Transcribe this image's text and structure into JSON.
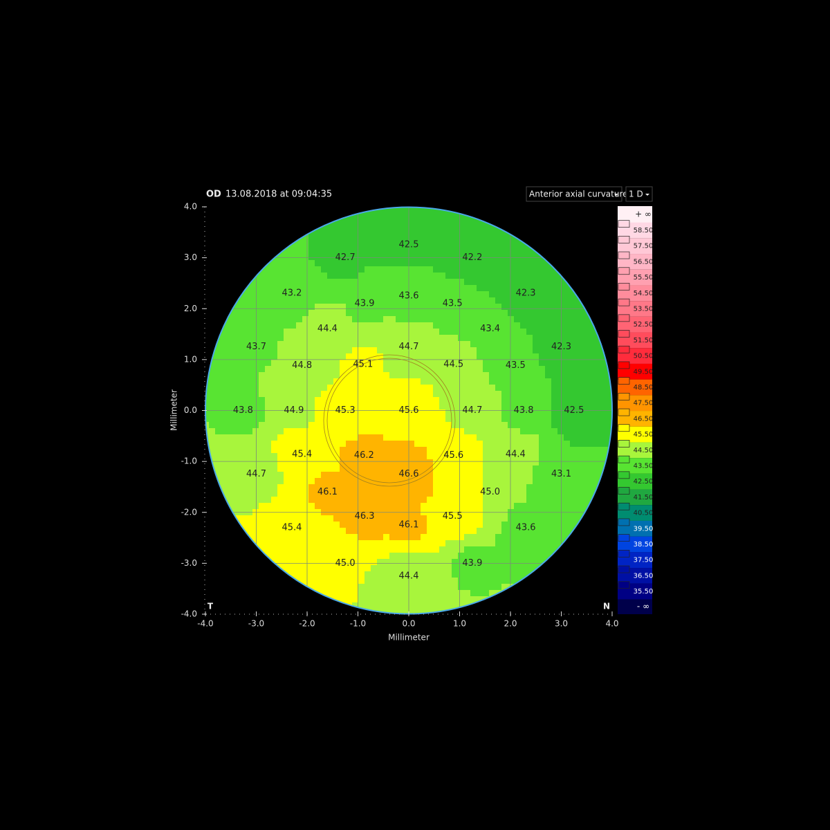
{
  "chart_data": {
    "type": "topography",
    "eye": "OD",
    "timestamp": "13.08.2018 at 09:04:35",
    "map_type": "Anterior axial curvature",
    "step": "1 D",
    "x_label": "Millimeter",
    "y_label": "Millimeter",
    "left_marker": "T",
    "right_marker": "N",
    "xlim": [
      -4,
      4
    ],
    "ylim": [
      -4,
      4
    ],
    "xticks": [
      {
        "value": -4,
        "label": "-4.0"
      },
      {
        "value": -3,
        "label": "-3.0"
      },
      {
        "value": -2,
        "label": "-2.0"
      },
      {
        "value": -1,
        "label": "-1.0"
      },
      {
        "value": 0,
        "label": "0.0"
      },
      {
        "value": 1,
        "label": "1.0"
      },
      {
        "value": 2,
        "label": "2.0"
      },
      {
        "value": 3,
        "label": "3.0"
      },
      {
        "value": 4,
        "label": "4.0"
      }
    ],
    "yticks": [
      {
        "value": -4,
        "label": "-4.0"
      },
      {
        "value": -3,
        "label": "-3.0"
      },
      {
        "value": -2,
        "label": "-2.0"
      },
      {
        "value": -1,
        "label": "-1.0"
      },
      {
        "value": 0,
        "label": "0.0"
      },
      {
        "value": 1,
        "label": "1.0"
      },
      {
        "value": 2,
        "label": "2.0"
      },
      {
        "value": 3,
        "label": "3.0"
      },
      {
        "value": 4,
        "label": "4.0"
      }
    ],
    "grid": true,
    "x": [
      0,
      -1.25,
      1.25,
      -2.3,
      -0.87,
      0,
      0.86,
      2.3,
      -1.6,
      1.6,
      -3.0,
      0,
      3.0,
      -2.1,
      -0.9,
      0.88,
      2.1,
      -3.26,
      -2.26,
      -1.25,
      0,
      1.25,
      2.26,
      3.25,
      -2.1,
      -0.88,
      0.88,
      2.1,
      -3.0,
      0,
      3.0,
      -1.6,
      1.6,
      -0.87,
      0,
      0.86,
      -2.3,
      2.3,
      -1.25,
      1.25,
      0
    ],
    "y": [
      3.25,
      3.0,
      3.0,
      2.3,
      2.1,
      2.25,
      2.1,
      2.3,
      1.6,
      1.6,
      1.25,
      1.25,
      1.25,
      0.88,
      0.9,
      0.9,
      0.88,
      0,
      0,
      0,
      0,
      0,
      0,
      0,
      -0.86,
      -0.88,
      -0.88,
      -0.86,
      -1.25,
      -1.25,
      -1.25,
      -1.6,
      -1.6,
      -2.08,
      -2.25,
      -2.08,
      -2.3,
      -2.3,
      -3.0,
      -3.0,
      -3.25
    ],
    "values": [
      42.5,
      42.7,
      42.2,
      43.2,
      43.9,
      43.6,
      43.5,
      42.3,
      44.4,
      43.4,
      43.7,
      44.7,
      42.3,
      44.8,
      45.1,
      44.5,
      43.5,
      43.8,
      44.9,
      45.3,
      45.6,
      44.7,
      43.8,
      42.5,
      45.4,
      46.2,
      45.6,
      44.4,
      44.7,
      46.6,
      43.1,
      46.1,
      45.0,
      46.3,
      46.1,
      45.5,
      45.4,
      43.6,
      45.0,
      43.9,
      44.4
    ],
    "value_labels": [
      "42.5",
      "42.7",
      "42.2",
      "43.2",
      "43.9",
      "43.6",
      "43.5",
      "42.3",
      "44.4",
      "43.4",
      "43.7",
      "44.7",
      "42.3",
      "44.8",
      "45.1",
      "44.5",
      "43.5",
      "43.8",
      "44.9",
      "45.3",
      "45.6",
      "44.7",
      "43.8",
      "42.5",
      "45.4",
      "46.2",
      "45.6",
      "44.4",
      "44.7",
      "46.6",
      "43.1",
      "46.1",
      "45.0",
      "46.3",
      "46.1",
      "45.5",
      "45.4",
      "43.6",
      "45.0",
      "43.9",
      "44.4"
    ],
    "legend_top": "+ ∞",
    "legend_bottom": "- ∞",
    "scale": [
      {
        "value": 58.5,
        "label": "58.50",
        "color": "#ffd8e4"
      },
      {
        "value": 57.5,
        "label": "57.50",
        "color": "#ffc8d6"
      },
      {
        "value": 56.5,
        "label": "56.50",
        "color": "#ffb6c6"
      },
      {
        "value": 55.5,
        "label": "55.50",
        "color": "#ffa0b0"
      },
      {
        "value": 54.5,
        "label": "54.50",
        "color": "#ff8c9c"
      },
      {
        "value": 53.5,
        "label": "53.50",
        "color": "#ff7888"
      },
      {
        "value": 52.5,
        "label": "52.50",
        "color": "#ff6474"
      },
      {
        "value": 51.5,
        "label": "51.50",
        "color": "#ff4c5c"
      },
      {
        "value": 50.5,
        "label": "50.50",
        "color": "#ff2c3c"
      },
      {
        "value": 49.5,
        "label": "49.50",
        "color": "#ff0000"
      },
      {
        "value": 48.5,
        "label": "48.50",
        "color": "#ff6400"
      },
      {
        "value": 47.5,
        "label": "47.50",
        "color": "#ff9400"
      },
      {
        "value": 46.5,
        "label": "46.50",
        "color": "#ffb400"
      },
      {
        "value": 45.5,
        "label": "45.50",
        "color": "#ffff00"
      },
      {
        "value": 44.5,
        "label": "44.50",
        "color": "#a8f53c"
      },
      {
        "value": 43.5,
        "label": "43.50",
        "color": "#58e432"
      },
      {
        "value": 42.5,
        "label": "42.50",
        "color": "#34c830"
      },
      {
        "value": 41.5,
        "label": "41.50",
        "color": "#20a840"
      },
      {
        "value": 40.5,
        "label": "40.50",
        "color": "#008c70"
      },
      {
        "value": 39.5,
        "label": "39.50",
        "color": "#0070b0"
      },
      {
        "value": 38.5,
        "label": "38.50",
        "color": "#0044e0"
      },
      {
        "value": 37.5,
        "label": "37.50",
        "color": "#0024c4"
      },
      {
        "value": 36.5,
        "label": "36.50",
        "color": "#0010a4"
      },
      {
        "value": 35.5,
        "label": "35.50",
        "color": "#000084"
      }
    ]
  }
}
